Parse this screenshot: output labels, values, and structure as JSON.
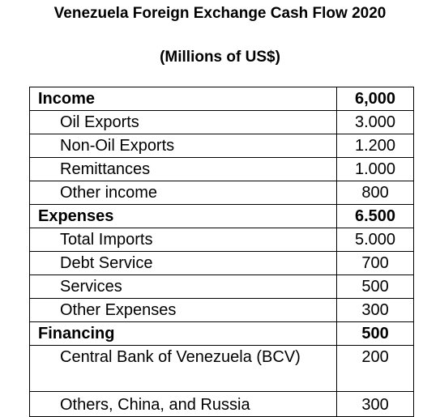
{
  "title": "Venezuela Foreign Exchange Cash Flow 2020",
  "subtitle": "(Millions of US$)",
  "rows": [
    {
      "label": "Income",
      "value": "6,000"
    },
    {
      "label": "Oil Exports",
      "value": "3.000"
    },
    {
      "label": "Non-Oil Exports",
      "value": "1.200"
    },
    {
      "label": "Remittances",
      "value": "1.000"
    },
    {
      "label": "Other income",
      "value": "800"
    },
    {
      "label": "Expenses",
      "value": "6.500"
    },
    {
      "label": "Total Imports",
      "value": "5.000"
    },
    {
      "label": "Debt Service",
      "value": "700"
    },
    {
      "label": "Services",
      "value": "500"
    },
    {
      "label": "Other Expenses",
      "value": "300"
    },
    {
      "label": "Financing",
      "value": "500"
    },
    {
      "label": "Central Bank of Venezuela (BCV)",
      "value": "200"
    },
    {
      "label": "Others, China, and Russia",
      "value": "300"
    }
  ]
}
